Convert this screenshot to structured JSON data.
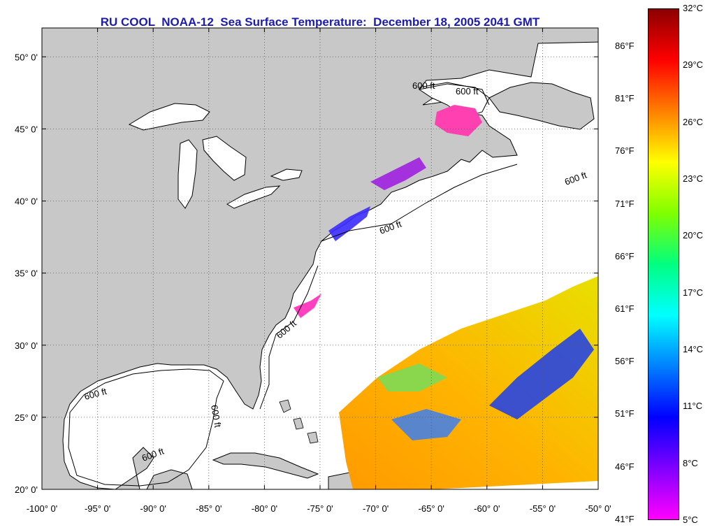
{
  "title": "RU COOL  NOAA-12  Sea Surface Temperature:  December 18, 2005 2041 GMT",
  "map": {
    "lon_range": [
      -100,
      -50
    ],
    "lat_range": [
      20,
      52
    ],
    "x_ticks": [
      {
        "value": -100,
        "label": "-100° 0'"
      },
      {
        "value": -95,
        "label": "-95° 0'"
      },
      {
        "value": -90,
        "label": "-90° 0'"
      },
      {
        "value": -85,
        "label": "-85° 0'"
      },
      {
        "value": -80,
        "label": "-80° 0'"
      },
      {
        "value": -75,
        "label": "-75° 0'"
      },
      {
        "value": -70,
        "label": "-70° 0'"
      },
      {
        "value": -65,
        "label": "-65° 0'"
      },
      {
        "value": -60,
        "label": "-60° 0'"
      },
      {
        "value": -55,
        "label": "-55° 0'"
      },
      {
        "value": -50,
        "label": "-50° 0'"
      }
    ],
    "y_ticks": [
      {
        "value": 20,
        "label": "20° 0'"
      },
      {
        "value": 25,
        "label": "25° 0'"
      },
      {
        "value": 30,
        "label": "30° 0'"
      },
      {
        "value": 35,
        "label": "35° 0'"
      },
      {
        "value": 40,
        "label": "40° 0'"
      },
      {
        "value": 45,
        "label": "45° 0'"
      },
      {
        "value": 50,
        "label": "50° 0'"
      }
    ],
    "contour_label": "600 ft",
    "colors": {
      "land": "#c8c8c8",
      "ocean": "#ffffff",
      "grid": "#555555"
    }
  },
  "colorbar": {
    "celsius": [
      "32°C",
      "29°C",
      "26°C",
      "23°C",
      "20°C",
      "17°C",
      "14°C",
      "11°C",
      "8°C",
      "5°C"
    ],
    "fahrenheit": [
      "86°F",
      "81°F",
      "76°F",
      "71°F",
      "66°F",
      "61°F",
      "56°F",
      "51°F",
      "46°F",
      "41°F"
    ],
    "gradient_colors": [
      "#8b0000",
      "#ff0000",
      "#ff8000",
      "#ffff00",
      "#80ff00",
      "#00ff80",
      "#00ffff",
      "#0080ff",
      "#0000ff",
      "#8000ff",
      "#ff00ff"
    ]
  }
}
